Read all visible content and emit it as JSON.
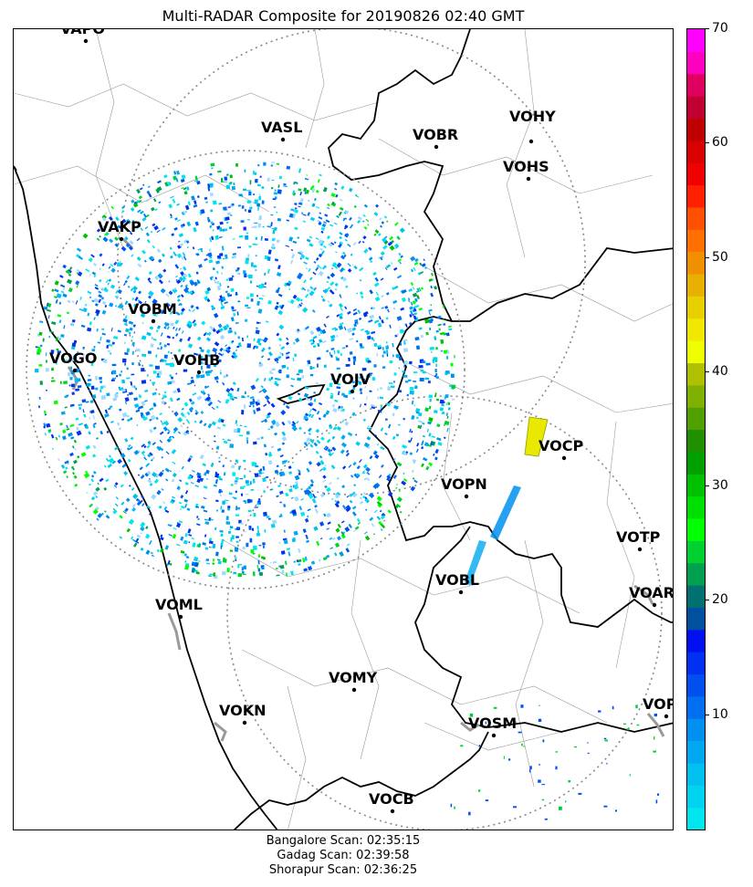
{
  "title": "Multi-RADAR Composite for 20190826 02:40 GMT",
  "stations": [
    {
      "code": "VAPO"
    },
    {
      "code": "VASL"
    },
    {
      "code": "VOBR"
    },
    {
      "code": "VOHY"
    },
    {
      "code": "VOHS"
    },
    {
      "code": "VAKP"
    },
    {
      "code": "VOBM"
    },
    {
      "code": "VOGO"
    },
    {
      "code": "VOHB"
    },
    {
      "code": "VOJV"
    },
    {
      "code": "VOCP"
    },
    {
      "code": "VOPN"
    },
    {
      "code": "VOTP"
    },
    {
      "code": "VOBL"
    },
    {
      "code": "VOAR"
    },
    {
      "code": "VOML"
    },
    {
      "code": "VOMY"
    },
    {
      "code": "VOKN"
    },
    {
      "code": "VOSM"
    },
    {
      "code": "VOPC"
    },
    {
      "code": "VOCB"
    }
  ],
  "colorbar": {
    "min": 0,
    "max": 70,
    "ticks": [
      "10",
      "20",
      "30",
      "40",
      "50",
      "60",
      "70"
    ],
    "colors": [
      "#00e5ee",
      "#00d3f0",
      "#00c0f0",
      "#00a8f0",
      "#0090f0",
      "#0070f0",
      "#0050f0",
      "#0030f0",
      "#0010f0",
      "#0050a0",
      "#007070",
      "#00a050",
      "#00d030",
      "#00ff00",
      "#00e000",
      "#00c000",
      "#00a000",
      "#208f00",
      "#50a000",
      "#80b000",
      "#b0c000",
      "#f0ff00",
      "#f0e800",
      "#e8d000",
      "#e8b000",
      "#f09000",
      "#ff7000",
      "#ff5000",
      "#ff2000",
      "#f00000",
      "#d80000",
      "#c00000",
      "#c00030",
      "#e00060",
      "#ff00c0",
      "#ff00ff"
    ]
  },
  "footer": [
    "Bangalore Scan: 02:35:15",
    "Gadag Scan: 02:39:58",
    "Shorapur Scan: 02:36:25"
  ]
}
